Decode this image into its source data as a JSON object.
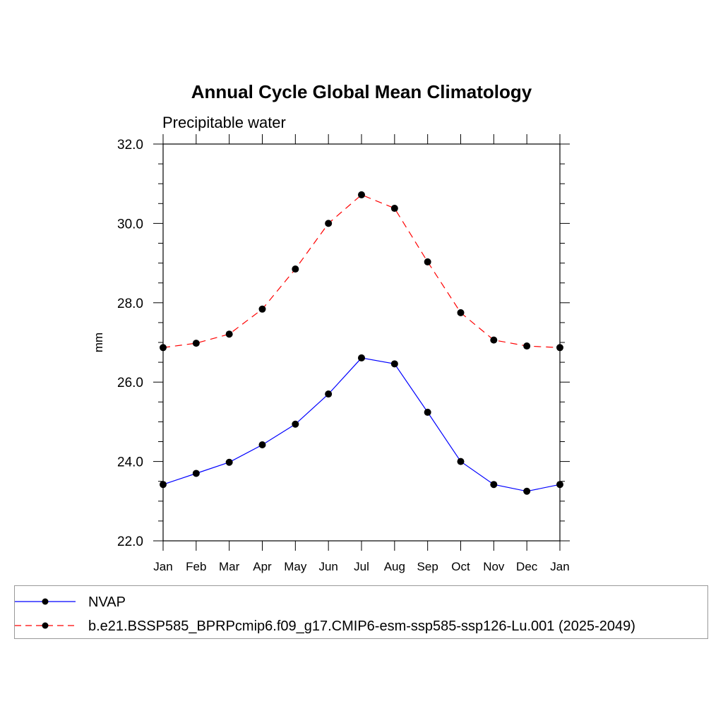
{
  "chart_data": {
    "type": "line",
    "title": "Annual Cycle Global Mean Climatology",
    "subtitle": "Precipitable water",
    "xlabel": "",
    "ylabel": "mm",
    "categories": [
      "Jan",
      "Feb",
      "Mar",
      "Apr",
      "May",
      "Jun",
      "Jul",
      "Aug",
      "Sep",
      "Oct",
      "Nov",
      "Dec",
      "Jan"
    ],
    "ylim": [
      22.0,
      32.0
    ],
    "yticks": [
      "22.0",
      "24.0",
      "26.0",
      "28.0",
      "30.0",
      "32.0"
    ],
    "grid": false,
    "legend_position": "bottom",
    "series": [
      {
        "name": "NVAP",
        "color": "#0000ff",
        "line_style": "solid",
        "marker": "filled-circle",
        "values": [
          23.42,
          23.7,
          23.98,
          24.42,
          24.94,
          25.7,
          26.61,
          26.46,
          25.24,
          24.0,
          23.42,
          23.25,
          23.42
        ]
      },
      {
        "name": "b.e21.BSSP585_BPRPcmip6.f09_g17.CMIP6-esm-ssp585-ssp126-Lu.001 (2025-2049)",
        "color": "#ff0000",
        "line_style": "dashed",
        "marker": "filled-circle",
        "values": [
          26.87,
          26.98,
          27.21,
          27.84,
          28.85,
          30.0,
          30.72,
          30.38,
          29.03,
          27.75,
          27.06,
          26.91,
          26.87
        ]
      }
    ]
  }
}
